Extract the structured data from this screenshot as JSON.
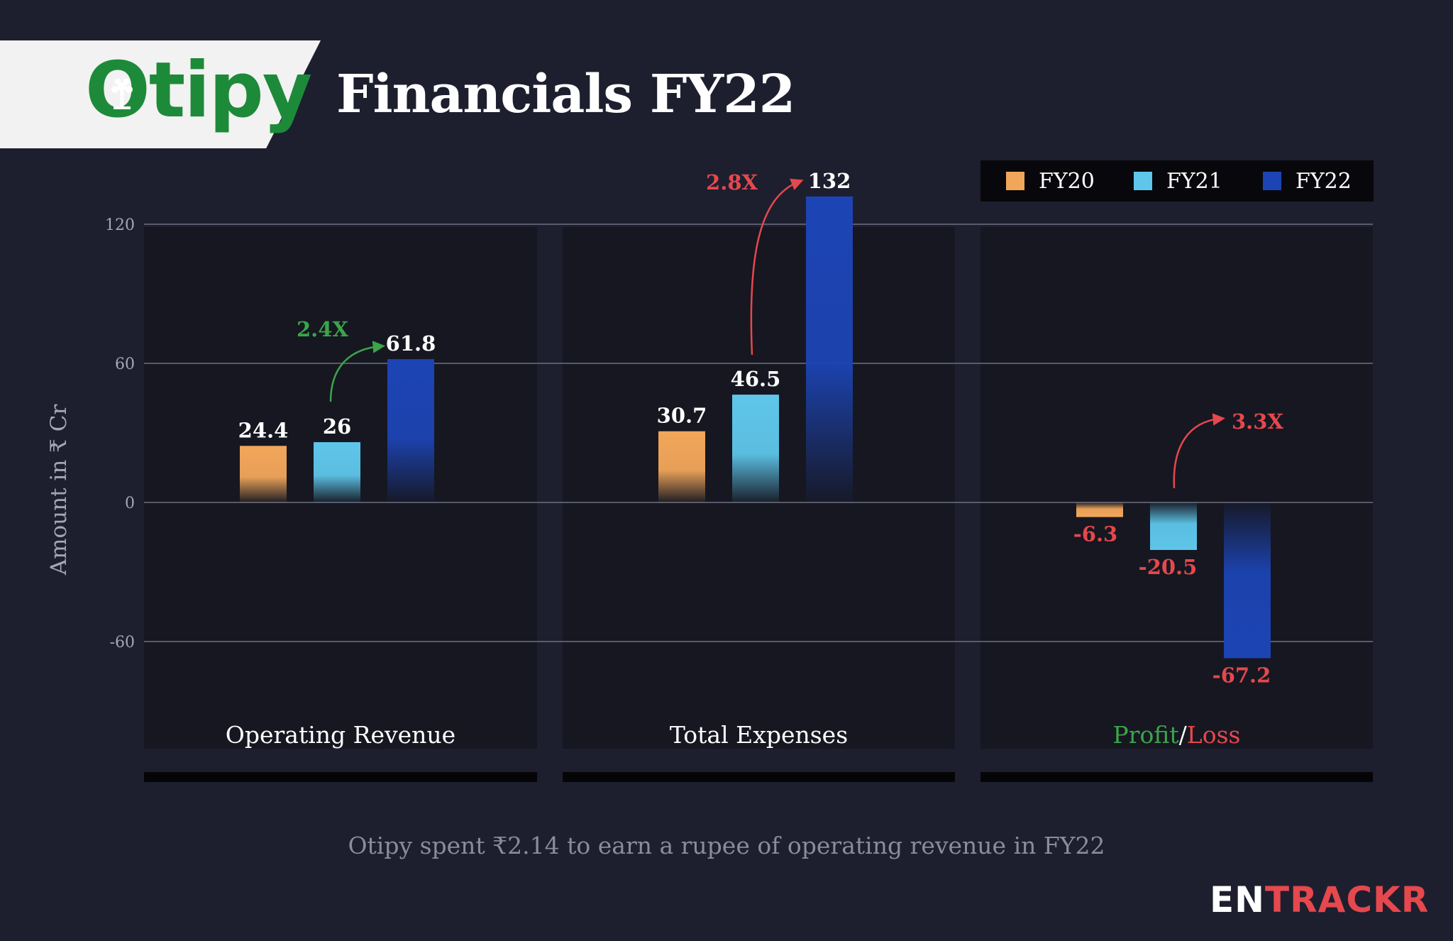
{
  "header": {
    "logo_text": "Otipy",
    "title": "Financials FY22"
  },
  "legend": [
    {
      "label": "FY20",
      "color": "#f2a65a"
    },
    {
      "label": "FY21",
      "color": "#5ec6ea"
    },
    {
      "label": "FY22",
      "color": "#1c44b4"
    }
  ],
  "chart_data": {
    "type": "bar",
    "ylabel": "Amount in ₹ Cr",
    "ylim": [
      -120,
      140
    ],
    "yticks": [
      -60,
      0,
      60,
      120
    ],
    "ytick_labels": [
      "-60",
      "0",
      "60",
      "120"
    ],
    "grid": true,
    "legend_position": "top-right",
    "categories": [
      "Operating Revenue",
      "Total Expenses",
      "Profit/Loss"
    ],
    "series": [
      {
        "name": "FY20",
        "values": [
          24.4,
          30.7,
          -6.3
        ],
        "labels": [
          "24.4",
          "30.7",
          "-6.3"
        ],
        "color": "#f2a65a"
      },
      {
        "name": "FY21",
        "values": [
          26,
          46.5,
          -20.5
        ],
        "labels": [
          "26",
          "46.5",
          "-20.5"
        ],
        "color": "#5ec6ea"
      },
      {
        "name": "FY22",
        "values": [
          61.8,
          132,
          -67.2
        ],
        "labels": [
          "61.8",
          "132",
          "-67.2"
        ],
        "color": "#1c44b4"
      }
    ],
    "annotations": [
      {
        "text": "2.4X",
        "category": 0,
        "color": "#3aa54a"
      },
      {
        "text": "2.8X",
        "category": 1,
        "color": "#e5484d"
      },
      {
        "text": "3.3X",
        "category": 2,
        "color": "#e5484d"
      }
    ],
    "category_label_parts": {
      "profit": {
        "text": "Profit",
        "color": "#3aa54a"
      },
      "separator": {
        "text": "/",
        "color": "#ffffff"
      },
      "loss": {
        "text": "Loss",
        "color": "#e5484d"
      }
    },
    "positive_label_color": "#ffffff",
    "negative_label_color": "#e5484d"
  },
  "caption": "Otipy spent ₹2.14 to earn a rupee of operating revenue in FY22",
  "brand": {
    "part1": "EN",
    "part2": "TRACKR"
  }
}
